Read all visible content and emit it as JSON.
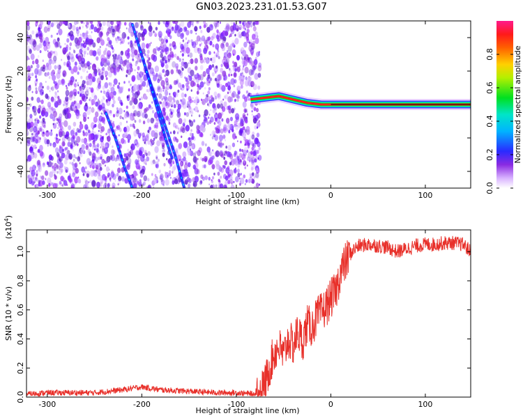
{
  "title": "GN03.2023.231.01.53.G07",
  "colors": {
    "snr_line": "#e8302a",
    "axis": "#000000",
    "spectrogram_noise": "#8a2be2",
    "track": "#1a1aff"
  },
  "chart_data": [
    {
      "type": "heatmap",
      "title": "GN03.2023.231.01.53.G07",
      "xlabel": "Height of straight line (km)",
      "ylabel": "Frequency (Hz)",
      "xlim": [
        -322,
        148
      ],
      "ylim": [
        -50,
        50
      ],
      "xticks": [
        -300,
        -200,
        -100,
        0,
        100
      ],
      "xtick_labels": [
        "-300",
        "-200",
        "-100",
        "0",
        "100"
      ],
      "yticks": [
        -40,
        -20,
        0,
        20,
        40
      ],
      "ytick_labels": [
        "-40",
        "-20",
        "0",
        "20",
        "40"
      ],
      "colorbar": {
        "label": "Normalized spectral amplitude",
        "range": [
          0,
          1
        ],
        "ticks": [
          0.0,
          0.2,
          0.4,
          0.6,
          0.8
        ],
        "tick_labels": [
          "0.0",
          "0.2",
          "0.4",
          "0.6",
          "0.8"
        ]
      },
      "noise_region_x": [
        -322,
        -75
      ],
      "carrier_line": {
        "x_range": [
          -85,
          148
        ],
        "points": [
          [
            -85,
            3
          ],
          [
            -70,
            4
          ],
          [
            -55,
            5
          ],
          [
            -40,
            3
          ],
          [
            -25,
            1
          ],
          [
            -10,
            0
          ],
          [
            0,
            0
          ],
          [
            148,
            0
          ]
        ]
      },
      "tracks": [
        {
          "x": [
            -210,
            -195,
            -180,
            -165,
            -155
          ],
          "y": [
            48,
            20,
            -5,
            -30,
            -50
          ]
        },
        {
          "x": [
            -238,
            -228,
            -218,
            -210
          ],
          "y": [
            -5,
            -20,
            -38,
            -50
          ]
        },
        {
          "x": [
            -195,
            -185,
            -175,
            -168
          ],
          "y": [
            20,
            0,
            -20,
            -32
          ]
        }
      ],
      "grid": false
    },
    {
      "type": "line",
      "xlabel": "Height of straight line (km)",
      "ylabel": "SNR (10 * v/v)",
      "y_multiplier": "(x10",
      "y_multiplier_exp": "4",
      "y_multiplier_close": ")",
      "xlim": [
        -322,
        148
      ],
      "ylim": [
        0,
        1.15
      ],
      "xticks": [
        -300,
        -200,
        -100,
        0,
        100
      ],
      "xtick_labels": [
        "-300",
        "-200",
        "-100",
        "0",
        "100"
      ],
      "yticks": [
        0.0,
        0.2,
        0.4,
        0.6,
        0.8,
        1.0
      ],
      "ytick_labels": [
        "0.0",
        "0.2",
        "0.4",
        "0.6",
        "0.8",
        "1.0"
      ],
      "series": [
        {
          "x": [
            -322,
            -300,
            -250,
            -220,
            -200,
            -180,
            -150,
            -120,
            -100,
            -80,
            -75,
            -70,
            -65,
            -60,
            -55,
            -50,
            -45,
            -40,
            -35,
            -30,
            -25,
            -20,
            -15,
            -10,
            -5,
            0,
            5,
            10,
            15,
            20,
            25,
            30,
            40,
            50,
            60,
            70,
            80,
            90,
            100,
            110,
            120,
            130,
            140,
            148
          ],
          "y": [
            0.02,
            0.03,
            0.03,
            0.05,
            0.07,
            0.05,
            0.04,
            0.03,
            0.03,
            0.02,
            0.03,
            0.08,
            0.2,
            0.3,
            0.35,
            0.28,
            0.4,
            0.35,
            0.45,
            0.38,
            0.5,
            0.48,
            0.55,
            0.58,
            0.62,
            0.68,
            0.72,
            0.85,
            0.92,
            0.98,
            1.02,
            1.04,
            1.05,
            1.04,
            1.03,
            1.0,
            1.02,
            1.04,
            1.05,
            1.05,
            1.06,
            1.06,
            1.05,
            1.0
          ]
        }
      ],
      "grid": false
    }
  ]
}
